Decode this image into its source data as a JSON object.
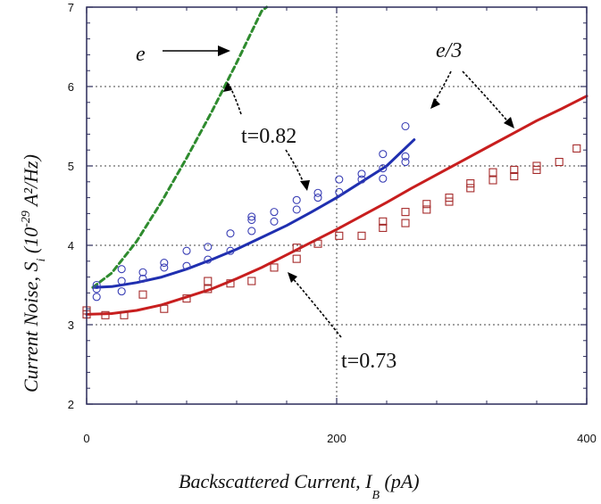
{
  "chart_data": {
    "type": "scatter",
    "x_axis": {
      "label_main": "Backscattered Current, I",
      "label_sub": "B",
      "label_tail": " (pA)",
      "range": [
        0,
        400
      ],
      "ticks": [
        0,
        200,
        400
      ],
      "tick_labels": [
        "0",
        "200",
        "400"
      ]
    },
    "y_axis": {
      "label_main": "Current Noise, S",
      "label_sub": "i",
      "label_tail": " (10",
      "label_exp": "-29",
      "label_end": " A²/Hz)",
      "range": [
        2,
        7
      ],
      "ticks": [
        2,
        3,
        4,
        5,
        6,
        7
      ],
      "tick_labels": [
        "2",
        "3",
        "4",
        "5",
        "6",
        "7"
      ]
    },
    "grid": {
      "x_major": [
        200
      ],
      "y_major": [
        3,
        4,
        5,
        6
      ]
    },
    "annotations": {
      "e": "e",
      "e3": "e/3",
      "t082": "t=0.82",
      "t073": "t=0.73"
    },
    "series": [
      {
        "marker": "circle",
        "color": "#3a3fb5",
        "points": [
          [
            8,
            3.35
          ],
          [
            8,
            3.45
          ],
          [
            8,
            3.5
          ],
          [
            28,
            3.55
          ],
          [
            28,
            3.7
          ],
          [
            28,
            3.42
          ],
          [
            45,
            3.58
          ],
          [
            45,
            3.66
          ],
          [
            62,
            3.72
          ],
          [
            62,
            3.78
          ],
          [
            80,
            3.74
          ],
          [
            80,
            3.93
          ],
          [
            97,
            3.82
          ],
          [
            97,
            3.98
          ],
          [
            115,
            3.93
          ],
          [
            115,
            4.15
          ],
          [
            132,
            4.18
          ],
          [
            132,
            4.32
          ],
          [
            132,
            4.36
          ],
          [
            150,
            4.3
          ],
          [
            150,
            4.42
          ],
          [
            168,
            4.45
          ],
          [
            168,
            4.57
          ],
          [
            185,
            4.6
          ],
          [
            185,
            4.66
          ],
          [
            202,
            4.67
          ],
          [
            202,
            4.83
          ],
          [
            220,
            4.83
          ],
          [
            220,
            4.9
          ],
          [
            237,
            4.84
          ],
          [
            237,
            4.97
          ],
          [
            237,
            5.15
          ],
          [
            255,
            5.05
          ],
          [
            255,
            5.12
          ],
          [
            255,
            5.5
          ]
        ]
      },
      {
        "marker": "square",
        "color": "#a52a2a",
        "points": [
          [
            0,
            3.13
          ],
          [
            0,
            3.18
          ],
          [
            15,
            3.12
          ],
          [
            30,
            3.12
          ],
          [
            45,
            3.38
          ],
          [
            62,
            3.2
          ],
          [
            80,
            3.33
          ],
          [
            97,
            3.55
          ],
          [
            97,
            3.45
          ],
          [
            115,
            3.52
          ],
          [
            132,
            3.55
          ],
          [
            150,
            3.72
          ],
          [
            168,
            3.83
          ],
          [
            168,
            3.97
          ],
          [
            185,
            4.02
          ],
          [
            202,
            4.12
          ],
          [
            220,
            4.12
          ],
          [
            237,
            4.22
          ],
          [
            237,
            4.3
          ],
          [
            255,
            4.28
          ],
          [
            255,
            4.42
          ],
          [
            272,
            4.45
          ],
          [
            272,
            4.52
          ],
          [
            290,
            4.55
          ],
          [
            290,
            4.6
          ],
          [
            307,
            4.72
          ],
          [
            307,
            4.78
          ],
          [
            325,
            4.82
          ],
          [
            325,
            4.92
          ],
          [
            342,
            4.87
          ],
          [
            342,
            4.95
          ],
          [
            360,
            4.95
          ],
          [
            360,
            5.0
          ],
          [
            378,
            5.05
          ],
          [
            392,
            5.22
          ]
        ]
      },
      {
        "marker": "line",
        "style": "solid",
        "color": "#1f2fb0",
        "points": [
          [
            5,
            3.47
          ],
          [
            20,
            3.48
          ],
          [
            40,
            3.53
          ],
          [
            60,
            3.6
          ],
          [
            80,
            3.7
          ],
          [
            100,
            3.82
          ],
          [
            120,
            3.95
          ],
          [
            140,
            4.1
          ],
          [
            160,
            4.25
          ],
          [
            180,
            4.42
          ],
          [
            200,
            4.6
          ],
          [
            220,
            4.8
          ],
          [
            240,
            5.0
          ],
          [
            262,
            5.33
          ]
        ]
      },
      {
        "marker": "line",
        "style": "solid",
        "color": "#c81e1e",
        "points": [
          [
            0,
            3.13
          ],
          [
            20,
            3.14
          ],
          [
            40,
            3.18
          ],
          [
            60,
            3.25
          ],
          [
            80,
            3.35
          ],
          [
            100,
            3.45
          ],
          [
            120,
            3.58
          ],
          [
            140,
            3.72
          ],
          [
            160,
            3.88
          ],
          [
            180,
            4.04
          ],
          [
            200,
            4.2
          ],
          [
            220,
            4.37
          ],
          [
            240,
            4.54
          ],
          [
            260,
            4.72
          ],
          [
            280,
            4.89
          ],
          [
            300,
            5.06
          ],
          [
            320,
            5.23
          ],
          [
            340,
            5.4
          ],
          [
            360,
            5.57
          ],
          [
            380,
            5.72
          ],
          [
            400,
            5.88
          ]
        ]
      },
      {
        "marker": "line",
        "style": "dashed",
        "color": "#2e8b2e",
        "points": [
          [
            5,
            3.47
          ],
          [
            20,
            3.65
          ],
          [
            40,
            4.05
          ],
          [
            60,
            4.55
          ],
          [
            80,
            5.1
          ],
          [
            100,
            5.68
          ],
          [
            120,
            6.3
          ],
          [
            140,
            6.95
          ],
          [
            144,
            7.0
          ]
        ]
      }
    ]
  }
}
